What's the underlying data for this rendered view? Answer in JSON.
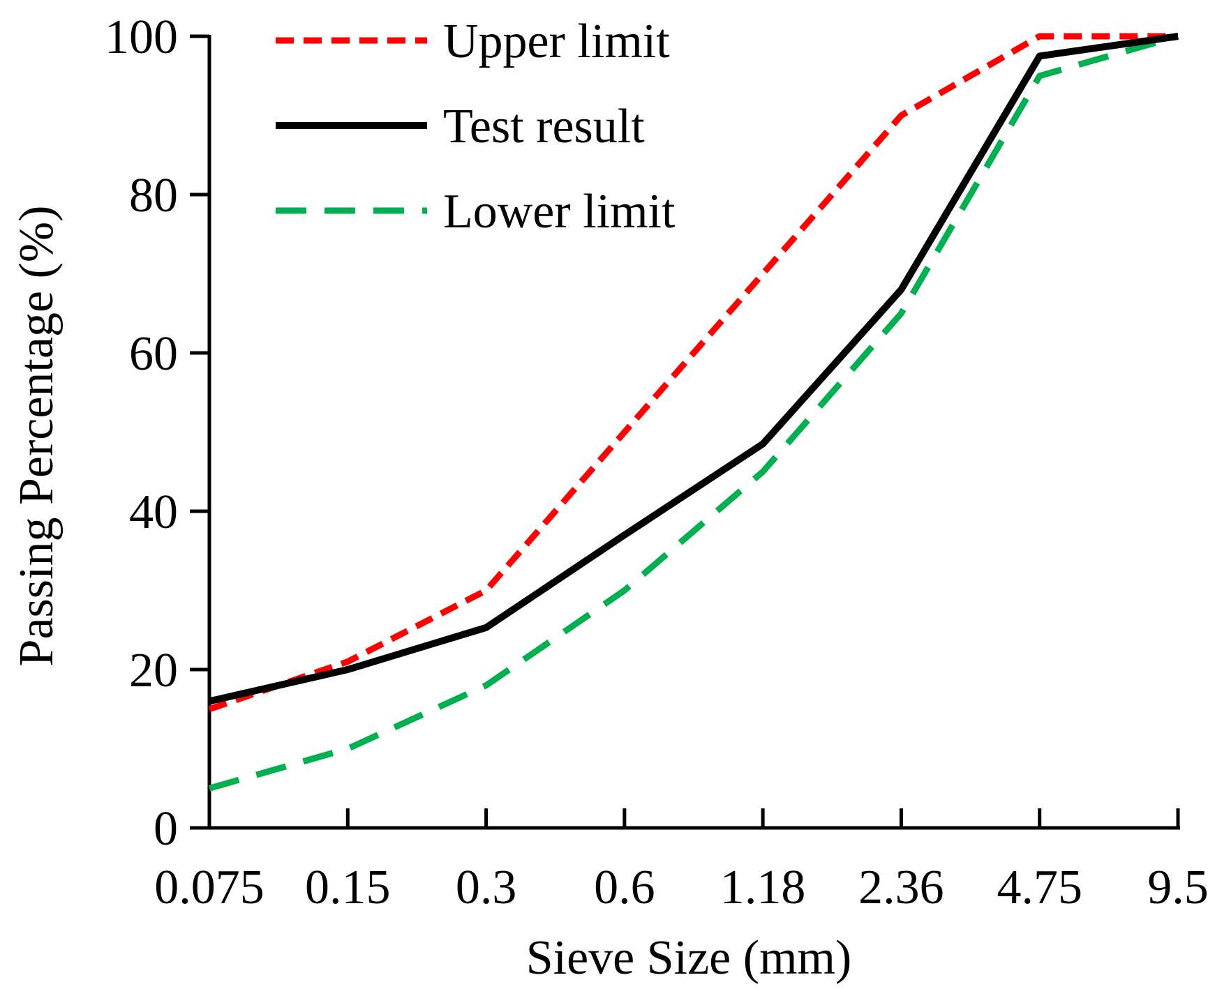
{
  "chart_data": {
    "type": "line",
    "title": "",
    "xlabel": "Sieve Size (mm)",
    "ylabel": "Passing Percentage (%)",
    "categories": [
      "0.075",
      "0.15",
      "0.3",
      "0.6",
      "1.18",
      "2.36",
      "4.75",
      "9.5"
    ],
    "yticks": [
      "0",
      "20",
      "40",
      "60",
      "80",
      "100"
    ],
    "ylim": [
      0,
      100
    ],
    "grid": false,
    "legend_position": "top-left",
    "series": [
      {
        "name": "Upper limit",
        "style": "short-dash",
        "color": "#ff0000",
        "values": [
          15,
          21,
          30,
          50,
          70,
          90,
          100,
          100
        ]
      },
      {
        "name": "Test result",
        "style": "solid",
        "color": "#000000",
        "values": [
          16,
          20,
          25.3,
          37,
          48.5,
          68,
          97.5,
          100
        ]
      },
      {
        "name": "Lower limit",
        "style": "long-dash",
        "color": "#00b050",
        "values": [
          5,
          10,
          18,
          30,
          45,
          65,
          95,
          100
        ]
      }
    ]
  }
}
